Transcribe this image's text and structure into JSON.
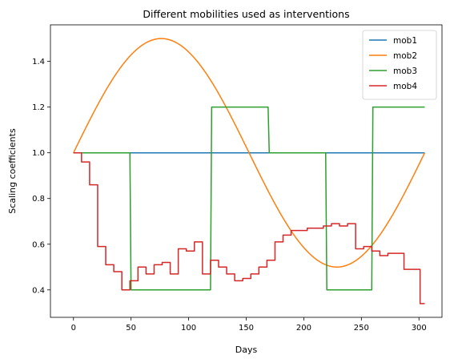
{
  "chart_data": {
    "type": "line",
    "title": "Different mobilities used as interventions",
    "xlabel": "Days",
    "ylabel": "Scaling coefficients",
    "xlim": [
      -20,
      320
    ],
    "ylim": [
      0.28,
      1.56
    ],
    "xticks": [
      0,
      50,
      100,
      150,
      200,
      250,
      300
    ],
    "yticks": [
      0.4,
      0.6,
      0.8,
      1.0,
      1.2,
      1.4
    ],
    "ytick_labels": [
      "0.4",
      "0.6",
      "0.8",
      "1.0",
      "1.2",
      "1.4"
    ],
    "grid": false,
    "legend_position": "top-right",
    "series": [
      {
        "name": "mob1",
        "color": "#1f77b4",
        "kind": "polyline",
        "x": [
          0,
          305
        ],
        "y": [
          1.0,
          1.0
        ]
      },
      {
        "name": "mob2",
        "color": "#ff7f0e",
        "kind": "sine",
        "x_range": [
          0,
          305
        ],
        "baseline": 1.0,
        "amplitude": 0.5,
        "period": 305
      },
      {
        "name": "mob3",
        "color": "#2ca02c",
        "kind": "polyline",
        "x": [
          0,
          49,
          50,
          119,
          120,
          169,
          170,
          219,
          220,
          259,
          260,
          305
        ],
        "y": [
          1.0,
          1.0,
          0.4,
          0.4,
          1.2,
          1.2,
          1.0,
          1.0,
          0.4,
          0.4,
          1.2,
          1.2
        ]
      },
      {
        "name": "mob4",
        "color": "#d62728",
        "kind": "step",
        "x": [
          0,
          7,
          14,
          21,
          28,
          35,
          42,
          49,
          56,
          63,
          70,
          77,
          84,
          91,
          98,
          105,
          112,
          119,
          126,
          133,
          140,
          147,
          154,
          161,
          168,
          175,
          182,
          189,
          196,
          203,
          210,
          217,
          224,
          231,
          238,
          245,
          252,
          259,
          266,
          273,
          280,
          287,
          294,
          301,
          305
        ],
        "y": [
          1.0,
          0.96,
          0.86,
          0.59,
          0.51,
          0.48,
          0.4,
          0.44,
          0.5,
          0.47,
          0.51,
          0.52,
          0.47,
          0.58,
          0.57,
          0.61,
          0.47,
          0.53,
          0.5,
          0.47,
          0.44,
          0.45,
          0.47,
          0.5,
          0.53,
          0.61,
          0.64,
          0.66,
          0.66,
          0.67,
          0.67,
          0.68,
          0.69,
          0.68,
          0.69,
          0.58,
          0.59,
          0.57,
          0.55,
          0.56,
          0.56,
          0.49,
          0.49,
          0.34,
          0.34
        ]
      }
    ]
  }
}
